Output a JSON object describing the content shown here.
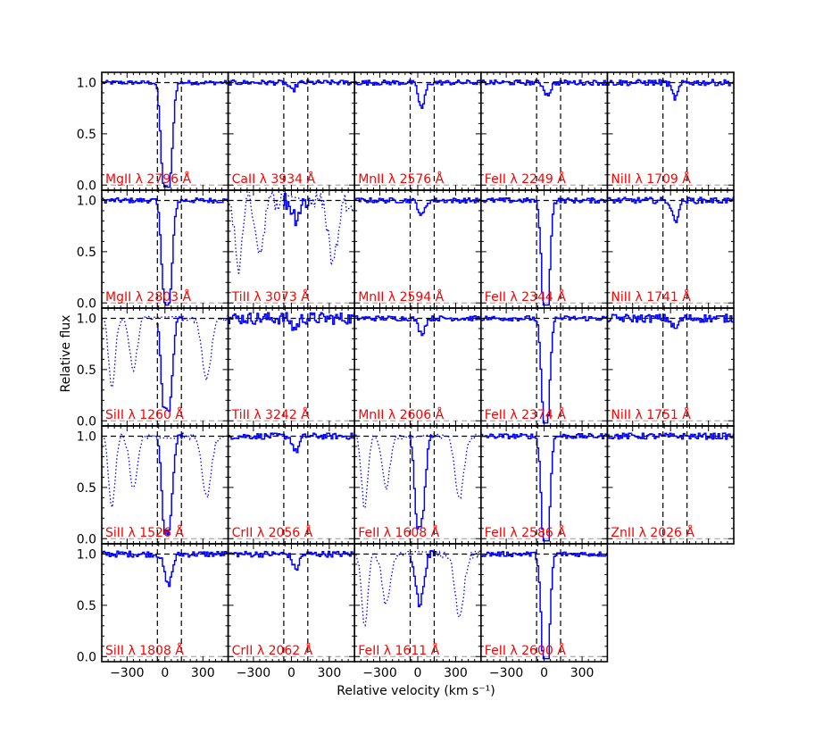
{
  "chart_data": {
    "type": "line",
    "xlabel": "Relative velocity (km s⁻¹)",
    "ylabel": "Relative flux",
    "xlim": [
      -500,
      500
    ],
    "ylim": [
      -0.05,
      1.1
    ],
    "xticks": [
      -300,
      0,
      300
    ],
    "yticks": [
      0.0,
      0.5,
      1.0
    ],
    "xtick_labels": [
      "−300",
      "0",
      "300"
    ],
    "ytick_labels": [
      "0.0",
      "0.5",
      "1.0"
    ],
    "integration_window": [
      -60,
      130
    ],
    "grid": false,
    "panels": [
      {
        "row": 0,
        "col": 0,
        "label": "MgII λ 2796 Å",
        "dips": [
          {
            "v": -20,
            "depth": 0.85,
            "w": 22
          },
          {
            "v": 30,
            "depth": 0.95,
            "w": 25
          }
        ],
        "noise": 0.02
      },
      {
        "row": 1,
        "col": 0,
        "label": "MgII λ 2803 Å",
        "dips": [
          {
            "v": -15,
            "depth": 0.75,
            "w": 22
          },
          {
            "v": 30,
            "depth": 0.9,
            "w": 25
          }
        ],
        "noise": 0.025
      },
      {
        "row": 2,
        "col": 0,
        "label": "SiII λ 1260 Å",
        "dips": [
          {
            "v": -20,
            "depth": 0.75,
            "w": 20
          },
          {
            "v": 30,
            "depth": 0.85,
            "w": 25
          }
        ],
        "noise": 0.03,
        "blend": true
      },
      {
        "row": 3,
        "col": 0,
        "label": "SiII λ 1526 Å",
        "dips": [
          {
            "v": -15,
            "depth": 0.7,
            "w": 20
          },
          {
            "v": 30,
            "depth": 0.85,
            "w": 25
          }
        ],
        "noise": 0.03,
        "blend": true
      },
      {
        "row": 4,
        "col": 0,
        "label": "SiII λ 1808 Å",
        "dips": [
          {
            "v": 20,
            "depth": 0.3,
            "w": 30
          }
        ],
        "noise": 0.03
      },
      {
        "row": 0,
        "col": 1,
        "label": "CaII λ 3934 Å",
        "dips": [
          {
            "v": 0,
            "depth": 0.08,
            "w": 25
          }
        ],
        "noise": 0.025
      },
      {
        "row": 1,
        "col": 1,
        "label": "TiII λ 3073 Å",
        "dips": [
          {
            "v": 30,
            "depth": 0.15,
            "w": 30
          }
        ],
        "noise": 0.1,
        "blend": true
      },
      {
        "row": 2,
        "col": 1,
        "label": "TiII λ 3242 Å",
        "dips": [
          {
            "v": 20,
            "depth": 0.1,
            "w": 25
          }
        ],
        "noise": 0.06
      },
      {
        "row": 3,
        "col": 1,
        "label": "CrII λ 2056 Å",
        "dips": [
          {
            "v": 30,
            "depth": 0.15,
            "w": 25
          }
        ],
        "noise": 0.03
      },
      {
        "row": 4,
        "col": 1,
        "label": "CrII λ 2062 Å",
        "dips": [
          {
            "v": 30,
            "depth": 0.15,
            "w": 25
          }
        ],
        "noise": 0.03
      },
      {
        "row": 0,
        "col": 2,
        "label": "MnII λ 2576 Å",
        "dips": [
          {
            "v": 25,
            "depth": 0.25,
            "w": 25
          }
        ],
        "noise": 0.025
      },
      {
        "row": 1,
        "col": 2,
        "label": "MnII λ 2594 Å",
        "dips": [
          {
            "v": 25,
            "depth": 0.15,
            "w": 25
          }
        ],
        "noise": 0.025
      },
      {
        "row": 2,
        "col": 2,
        "label": "MnII λ 2606 Å",
        "dips": [
          {
            "v": 25,
            "depth": 0.15,
            "w": 25
          }
        ],
        "noise": 0.025
      },
      {
        "row": 3,
        "col": 2,
        "label": "FeII λ 1608 Å",
        "dips": [
          {
            "v": -15,
            "depth": 0.7,
            "w": 20
          },
          {
            "v": 30,
            "depth": 0.75,
            "w": 25
          }
        ],
        "noise": 0.03,
        "blend": true
      },
      {
        "row": 4,
        "col": 2,
        "label": "FeII λ 1611 Å",
        "dips": [
          {
            "v": 10,
            "depth": 0.5,
            "w": 30
          }
        ],
        "noise": 0.04,
        "blend": true
      },
      {
        "row": 0,
        "col": 3,
        "label": "FeII λ 2249 Å",
        "dips": [
          {
            "v": 20,
            "depth": 0.12,
            "w": 25
          }
        ],
        "noise": 0.025
      },
      {
        "row": 1,
        "col": 3,
        "label": "FeII λ 2344 Å",
        "dips": [
          {
            "v": -10,
            "depth": 0.8,
            "w": 22
          },
          {
            "v": 20,
            "depth": 0.9,
            "w": 22
          }
        ],
        "noise": 0.025
      },
      {
        "row": 2,
        "col": 3,
        "label": "FeII λ 2374 Å",
        "dips": [
          {
            "v": -10,
            "depth": 0.75,
            "w": 22
          },
          {
            "v": 20,
            "depth": 0.85,
            "w": 22
          }
        ],
        "noise": 0.025
      },
      {
        "row": 3,
        "col": 3,
        "label": "FeII λ 2586 Å",
        "dips": [
          {
            "v": -10,
            "depth": 0.8,
            "w": 22
          },
          {
            "v": 20,
            "depth": 0.95,
            "w": 22
          }
        ],
        "noise": 0.025
      },
      {
        "row": 4,
        "col": 3,
        "label": "FeII λ 2600 Å",
        "dips": [
          {
            "v": -10,
            "depth": 0.85,
            "w": 22
          },
          {
            "v": 20,
            "depth": 0.95,
            "w": 22
          }
        ],
        "noise": 0.025
      },
      {
        "row": 0,
        "col": 4,
        "label": "NiII λ 1709 Å",
        "dips": [
          {
            "v": 30,
            "depth": 0.15,
            "w": 25
          }
        ],
        "noise": 0.03
      },
      {
        "row": 1,
        "col": 4,
        "label": "NiII λ 1741 Å",
        "dips": [
          {
            "v": 30,
            "depth": 0.2,
            "w": 25
          }
        ],
        "noise": 0.03
      },
      {
        "row": 2,
        "col": 4,
        "label": "NiII λ 1751 Å",
        "dips": [
          {
            "v": 30,
            "depth": 0.1,
            "w": 25
          }
        ],
        "noise": 0.04
      },
      {
        "row": 3,
        "col": 4,
        "label": "ZnII λ 2026 Å",
        "dips": [],
        "noise": 0.03
      }
    ]
  },
  "colors": {
    "spectrum": "#0000ff",
    "label": "#ff0000",
    "lines": "#000000",
    "zero": "#999999"
  }
}
